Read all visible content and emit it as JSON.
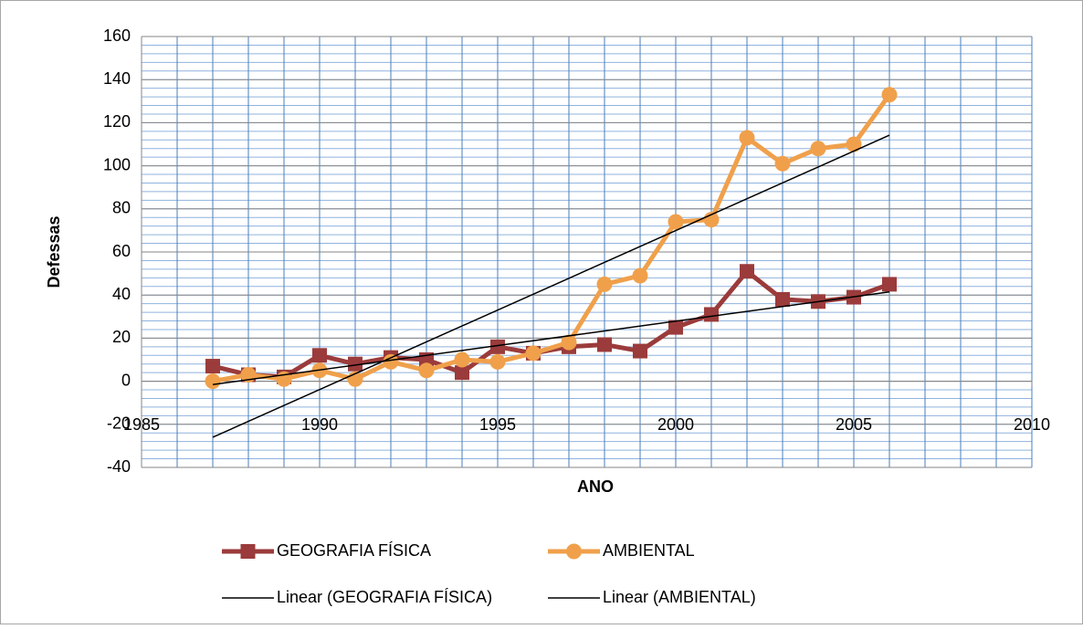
{
  "chart_data": {
    "type": "line",
    "x_label": "ANO",
    "y_label": "Defessas",
    "x": [
      1987,
      1988,
      1989,
      1990,
      1991,
      1992,
      1993,
      1994,
      1995,
      1996,
      1997,
      1998,
      1999,
      2000,
      2001,
      2002,
      2003,
      2004,
      2005,
      2006
    ],
    "series": [
      {
        "name": "GEOGRAFIA FÍSICA",
        "color": "#9b3b3b",
        "marker": "square",
        "values": [
          7,
          3,
          2,
          12,
          8,
          11,
          10,
          4,
          16,
          13,
          16,
          17,
          14,
          25,
          31,
          51,
          38,
          37,
          39,
          45
        ]
      },
      {
        "name": "AMBIENTAL",
        "color": "#f0a04b",
        "marker": "circle",
        "values": [
          0,
          3,
          1,
          5,
          1,
          9,
          5,
          10,
          9,
          13,
          18,
          45,
          49,
          74,
          75,
          113,
          101,
          108,
          110,
          133
        ]
      }
    ],
    "trendlines": [
      {
        "name": "Linear (GEOGRAFIA FÍSICA)",
        "series": 0,
        "kind": "linear",
        "color": "#000000"
      },
      {
        "name": "Linear (AMBIENTAL)",
        "series": 1,
        "kind": "linear",
        "color": "#000000"
      }
    ],
    "xlim": [
      1985,
      2010
    ],
    "xticks": [
      1985,
      1990,
      1995,
      2000,
      2005,
      2010
    ],
    "ylim": [
      -40,
      160
    ],
    "yticks": [
      -40,
      -20,
      0,
      20,
      40,
      60,
      80,
      100,
      120,
      140,
      160
    ],
    "grid": true,
    "minor_xstep": 1,
    "minor_ystep": 4,
    "legend": "bottom"
  }
}
